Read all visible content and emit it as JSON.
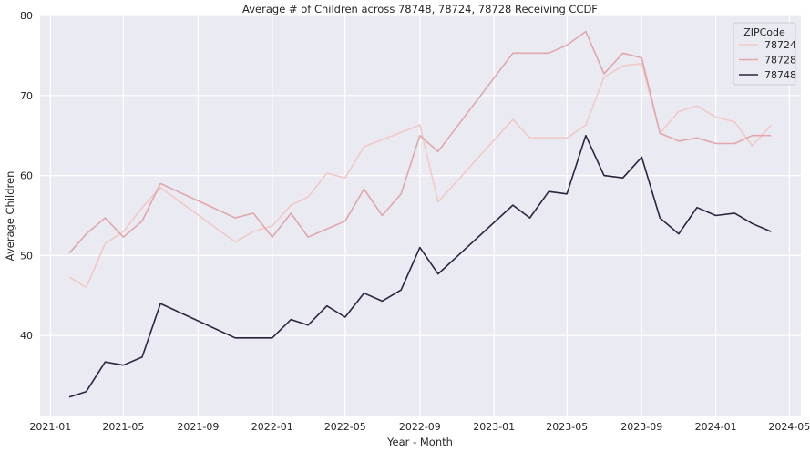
{
  "chart_data": {
    "type": "line",
    "title": "Average # of Children across 78748, 78724, 78728 Receiving CCDF",
    "xlabel": "Year - Month",
    "ylabel": "Average Children",
    "x_tick_labels": [
      "2021-01",
      "2021-05",
      "2021-09",
      "2022-01",
      "2022-05",
      "2022-09",
      "2023-01",
      "2023-05",
      "2023-09",
      "2024-01",
      "2024-05"
    ],
    "y_ticks": [
      40,
      50,
      60,
      70,
      80
    ],
    "ylim": [
      30,
      80
    ],
    "xlim": [
      "2020-12-15",
      "2024-05-20"
    ],
    "grid": true,
    "legend_title": "ZIPCode",
    "legend_position": "top-right",
    "background": "#eaeaf2",
    "x": [
      "2021-02",
      "2021-03",
      "2021-04",
      "2021-05",
      "2021-06",
      "2021-07",
      "2021-11",
      "2021-12",
      "2022-01",
      "2022-02",
      "2022-03",
      "2022-04",
      "2022-05",
      "2022-06",
      "2022-07",
      "2022-08",
      "2022-09",
      "2022-10",
      "2023-02",
      "2023-03",
      "2023-04",
      "2023-05",
      "2023-06",
      "2023-07",
      "2023-08",
      "2023-09",
      "2023-10",
      "2023-11",
      "2023-12",
      "2024-01",
      "2024-02",
      "2024-03",
      "2024-04"
    ],
    "series": [
      {
        "name": "78724",
        "color": "#f2c9c4",
        "values": [
          47.3,
          46.0,
          51.5,
          53.0,
          56.0,
          58.5,
          51.7,
          53.0,
          53.7,
          56.3,
          57.3,
          60.3,
          59.7,
          63.6,
          null,
          null,
          66.3,
          56.7,
          67.0,
          64.7,
          64.7,
          64.7,
          66.3,
          72.3,
          73.7,
          74.0,
          65.3,
          68.0,
          68.7,
          67.3,
          66.7,
          63.7,
          66.3
        ]
      },
      {
        "name": "78728",
        "color": "#e1a7ab",
        "values": [
          50.3,
          52.7,
          54.7,
          52.3,
          54.3,
          59.0,
          54.7,
          55.3,
          52.3,
          55.3,
          52.3,
          null,
          54.3,
          58.3,
          55.0,
          57.7,
          65.0,
          63.0,
          75.3,
          75.3,
          75.3,
          76.3,
          78.0,
          72.7,
          75.3,
          74.7,
          65.3,
          64.3,
          64.7,
          64.0,
          64.0,
          65.0,
          65.0
        ]
      },
      {
        "name": "78748",
        "color": "#2c2440",
        "values": [
          32.3,
          33.0,
          36.7,
          36.3,
          37.3,
          44.0,
          39.7,
          39.7,
          39.7,
          42.0,
          41.3,
          43.7,
          42.3,
          45.3,
          44.3,
          45.7,
          51.0,
          47.7,
          56.3,
          54.7,
          58.0,
          57.7,
          65.0,
          60.0,
          59.7,
          62.3,
          54.7,
          52.7,
          56.0,
          55.0,
          55.3,
          54.0,
          53.0
        ]
      }
    ]
  }
}
